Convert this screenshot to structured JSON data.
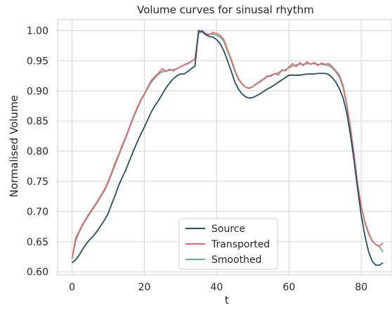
{
  "chart_data": {
    "type": "line",
    "title": "Volume curves for sinusal rhythm",
    "xlabel": "t",
    "ylabel": "Normalised Volume",
    "xlim": [
      -4,
      88.5
    ],
    "ylim": [
      0.595,
      1.018
    ],
    "xticks": [
      0,
      20,
      40,
      60,
      80
    ],
    "yticks": [
      0.6,
      0.65,
      0.7,
      0.75,
      0.8,
      0.85,
      0.9,
      0.95,
      1.0
    ],
    "grid": true,
    "legend_position": "lower center",
    "series": [
      {
        "name": "Source",
        "color": "#264d63",
        "points": [
          [
            0,
            0.615
          ],
          [
            1,
            0.62
          ],
          [
            2,
            0.628
          ],
          [
            3,
            0.638
          ],
          [
            4,
            0.647
          ],
          [
            5,
            0.654
          ],
          [
            6,
            0.66
          ],
          [
            7,
            0.668
          ],
          [
            8,
            0.677
          ],
          [
            9,
            0.686
          ],
          [
            10,
            0.697
          ],
          [
            11,
            0.713
          ],
          [
            12,
            0.728
          ],
          [
            13,
            0.745
          ],
          [
            14,
            0.758
          ],
          [
            15,
            0.771
          ],
          [
            16,
            0.786
          ],
          [
            17,
            0.801
          ],
          [
            18,
            0.815
          ],
          [
            19,
            0.828
          ],
          [
            20,
            0.84
          ],
          [
            21,
            0.853
          ],
          [
            22,
            0.866
          ],
          [
            23,
            0.876
          ],
          [
            24,
            0.885
          ],
          [
            25,
            0.895
          ],
          [
            26,
            0.905
          ],
          [
            27,
            0.913
          ],
          [
            28,
            0.92
          ],
          [
            29,
            0.925
          ],
          [
            30,
            0.928
          ],
          [
            31,
            0.928
          ],
          [
            32,
            0.932
          ],
          [
            33,
            0.937
          ],
          [
            34,
            0.941
          ],
          [
            35,
            1.0
          ],
          [
            36,
            0.998
          ],
          [
            37,
            0.993
          ],
          [
            38,
            0.99
          ],
          [
            39,
            0.989
          ],
          [
            40,
            0.985
          ],
          [
            41,
            0.978
          ],
          [
            42,
            0.966
          ],
          [
            43,
            0.95
          ],
          [
            44,
            0.933
          ],
          [
            45,
            0.915
          ],
          [
            46,
            0.903
          ],
          [
            47,
            0.895
          ],
          [
            48,
            0.89
          ],
          [
            49,
            0.888
          ],
          [
            50,
            0.889
          ],
          [
            51,
            0.892
          ],
          [
            52,
            0.895
          ],
          [
            53,
            0.899
          ],
          [
            54,
            0.903
          ],
          [
            55,
            0.906
          ],
          [
            56,
            0.91
          ],
          [
            57,
            0.914
          ],
          [
            58,
            0.918
          ],
          [
            59,
            0.922
          ],
          [
            60,
            0.926
          ],
          [
            61,
            0.926
          ],
          [
            62,
            0.926
          ],
          [
            63,
            0.926
          ],
          [
            64,
            0.927
          ],
          [
            65,
            0.928
          ],
          [
            66,
            0.928
          ],
          [
            67,
            0.928
          ],
          [
            68,
            0.929
          ],
          [
            69,
            0.929
          ],
          [
            70,
            0.929
          ],
          [
            71,
            0.927
          ],
          [
            72,
            0.922
          ],
          [
            73,
            0.914
          ],
          [
            74,
            0.903
          ],
          [
            75,
            0.888
          ],
          [
            76,
            0.863
          ],
          [
            77,
            0.827
          ],
          [
            78,
            0.785
          ],
          [
            79,
            0.737
          ],
          [
            80,
            0.693
          ],
          [
            81,
            0.66
          ],
          [
            82,
            0.634
          ],
          [
            83,
            0.618
          ],
          [
            84,
            0.611
          ],
          [
            85,
            0.611
          ],
          [
            86,
            0.615
          ]
        ]
      },
      {
        "name": "Transported",
        "color": "#d9706f",
        "points": [
          [
            0,
            0.622
          ],
          [
            1,
            0.656
          ],
          [
            2,
            0.668
          ],
          [
            3,
            0.68
          ],
          [
            4,
            0.69
          ],
          [
            5,
            0.699
          ],
          [
            6,
            0.708
          ],
          [
            7,
            0.717
          ],
          [
            8,
            0.727
          ],
          [
            9,
            0.737
          ],
          [
            10,
            0.75
          ],
          [
            11,
            0.766
          ],
          [
            12,
            0.782
          ],
          [
            13,
            0.796
          ],
          [
            14,
            0.812
          ],
          [
            15,
            0.826
          ],
          [
            16,
            0.842
          ],
          [
            17,
            0.858
          ],
          [
            18,
            0.872
          ],
          [
            19,
            0.885
          ],
          [
            20,
            0.895
          ],
          [
            21,
            0.907
          ],
          [
            22,
            0.918
          ],
          [
            23,
            0.924
          ],
          [
            24,
            0.93
          ],
          [
            25,
            0.937
          ],
          [
            26,
            0.932
          ],
          [
            27,
            0.936
          ],
          [
            28,
            0.933
          ],
          [
            29,
            0.937
          ],
          [
            30,
            0.94
          ],
          [
            31,
            0.943
          ],
          [
            32,
            0.945
          ],
          [
            33,
            0.949
          ],
          [
            34,
            0.953
          ],
          [
            35,
            0.998
          ],
          [
            36,
            1.0
          ],
          [
            37,
            0.995
          ],
          [
            38,
            0.993
          ],
          [
            39,
            0.997
          ],
          [
            40,
            0.995
          ],
          [
            41,
            0.992
          ],
          [
            42,
            0.985
          ],
          [
            43,
            0.968
          ],
          [
            44,
            0.953
          ],
          [
            45,
            0.935
          ],
          [
            46,
            0.92
          ],
          [
            47,
            0.912
          ],
          [
            48,
            0.906
          ],
          [
            49,
            0.904
          ],
          [
            50,
            0.907
          ],
          [
            51,
            0.912
          ],
          [
            52,
            0.916
          ],
          [
            53,
            0.92
          ],
          [
            54,
            0.925
          ],
          [
            55,
            0.924
          ],
          [
            56,
            0.929
          ],
          [
            57,
            0.926
          ],
          [
            58,
            0.935
          ],
          [
            59,
            0.933
          ],
          [
            60,
            0.94
          ],
          [
            61,
            0.945
          ],
          [
            62,
            0.94
          ],
          [
            63,
            0.947
          ],
          [
            64,
            0.942
          ],
          [
            65,
            0.948
          ],
          [
            66,
            0.944
          ],
          [
            67,
            0.947
          ],
          [
            68,
            0.942
          ],
          [
            69,
            0.946
          ],
          [
            70,
            0.944
          ],
          [
            71,
            0.945
          ],
          [
            72,
            0.94
          ],
          [
            73,
            0.933
          ],
          [
            74,
            0.925
          ],
          [
            75,
            0.908
          ],
          [
            76,
            0.878
          ],
          [
            77,
            0.84
          ],
          [
            78,
            0.795
          ],
          [
            79,
            0.745
          ],
          [
            80,
            0.708
          ],
          [
            81,
            0.683
          ],
          [
            82,
            0.665
          ],
          [
            83,
            0.652
          ],
          [
            84,
            0.645
          ],
          [
            85,
            0.643
          ],
          [
            86,
            0.648
          ]
        ]
      },
      {
        "name": "Smoothed",
        "color": "#6fa89a",
        "points": [
          [
            0,
            0.622
          ],
          [
            1,
            0.651
          ],
          [
            2,
            0.666
          ],
          [
            3,
            0.678
          ],
          [
            4,
            0.688
          ],
          [
            5,
            0.697
          ],
          [
            6,
            0.706
          ],
          [
            7,
            0.715
          ],
          [
            8,
            0.725
          ],
          [
            9,
            0.735
          ],
          [
            10,
            0.748
          ],
          [
            11,
            0.763
          ],
          [
            12,
            0.779
          ],
          [
            13,
            0.794
          ],
          [
            14,
            0.809
          ],
          [
            15,
            0.824
          ],
          [
            16,
            0.84
          ],
          [
            17,
            0.856
          ],
          [
            18,
            0.87
          ],
          [
            19,
            0.883
          ],
          [
            20,
            0.894
          ],
          [
            21,
            0.905
          ],
          [
            22,
            0.915
          ],
          [
            23,
            0.922
          ],
          [
            24,
            0.928
          ],
          [
            25,
            0.932
          ],
          [
            26,
            0.933
          ],
          [
            27,
            0.934
          ],
          [
            28,
            0.935
          ],
          [
            29,
            0.937
          ],
          [
            30,
            0.94
          ],
          [
            31,
            0.943
          ],
          [
            32,
            0.946
          ],
          [
            33,
            0.949
          ],
          [
            34,
            0.953
          ],
          [
            35,
            0.995
          ],
          [
            36,
            0.998
          ],
          [
            37,
            0.995
          ],
          [
            38,
            0.994
          ],
          [
            39,
            0.994
          ],
          [
            40,
            0.992
          ],
          [
            41,
            0.989
          ],
          [
            42,
            0.982
          ],
          [
            43,
            0.966
          ],
          [
            44,
            0.95
          ],
          [
            45,
            0.933
          ],
          [
            46,
            0.919
          ],
          [
            47,
            0.911
          ],
          [
            48,
            0.906
          ],
          [
            49,
            0.905
          ],
          [
            50,
            0.907
          ],
          [
            51,
            0.911
          ],
          [
            52,
            0.915
          ],
          [
            53,
            0.919
          ],
          [
            54,
            0.923
          ],
          [
            55,
            0.926
          ],
          [
            56,
            0.928
          ],
          [
            57,
            0.93
          ],
          [
            58,
            0.933
          ],
          [
            59,
            0.935
          ],
          [
            60,
            0.938
          ],
          [
            61,
            0.941
          ],
          [
            62,
            0.943
          ],
          [
            63,
            0.944
          ],
          [
            64,
            0.944
          ],
          [
            65,
            0.945
          ],
          [
            66,
            0.945
          ],
          [
            67,
            0.945
          ],
          [
            68,
            0.944
          ],
          [
            69,
            0.944
          ],
          [
            70,
            0.943
          ],
          [
            71,
            0.942
          ],
          [
            72,
            0.938
          ],
          [
            73,
            0.931
          ],
          [
            74,
            0.922
          ],
          [
            75,
            0.905
          ],
          [
            76,
            0.876
          ],
          [
            77,
            0.838
          ],
          [
            78,
            0.793
          ],
          [
            79,
            0.746
          ],
          [
            80,
            0.707
          ],
          [
            81,
            0.681
          ],
          [
            82,
            0.663
          ],
          [
            83,
            0.651
          ],
          [
            84,
            0.645
          ],
          [
            85,
            0.642
          ],
          [
            86,
            0.633
          ]
        ]
      }
    ]
  }
}
